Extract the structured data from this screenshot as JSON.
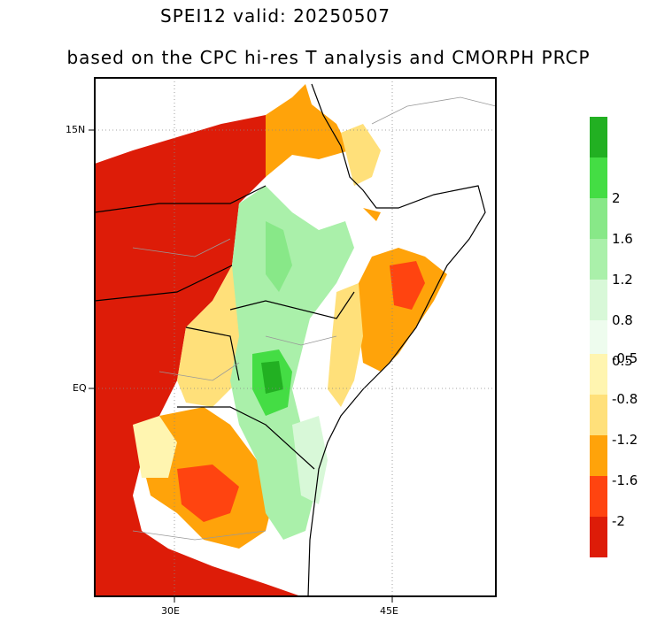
{
  "title": "SPEI12   valid: 20250507",
  "subtitle": "based on the CPC hi-res T analysis and CMORPH PRCP",
  "axes": {
    "y_ticks": [
      {
        "label": "15N",
        "lat": 15
      },
      {
        "label": "EQ",
        "lat": 0
      }
    ],
    "x_ticks": [
      {
        "label": "30E",
        "lon": 30
      },
      {
        "label": "45E",
        "lon": 45
      }
    ]
  },
  "colorbar": {
    "wet_levels": [
      {
        "color": "#22b022"
      },
      {
        "color": "#44dd44",
        "label": "2"
      },
      {
        "color": "#88e888",
        "label": "1.6"
      },
      {
        "color": "#aaf0aa",
        "label": "1.2"
      },
      {
        "color": "#d8f8d8",
        "label": "0.8"
      },
      {
        "color": "#eefcee",
        "label": "0.5"
      }
    ],
    "dry_levels": [
      {
        "color": "#fff5b0",
        "label": "-0.5"
      },
      {
        "color": "#ffe07a",
        "label": "-0.8"
      },
      {
        "color": "#ffa30a",
        "label": "-1.2"
      },
      {
        "color": "#ff4410",
        "label": "-1.6"
      },
      {
        "color": "#dd1c08",
        "label": "-2"
      }
    ]
  }
}
